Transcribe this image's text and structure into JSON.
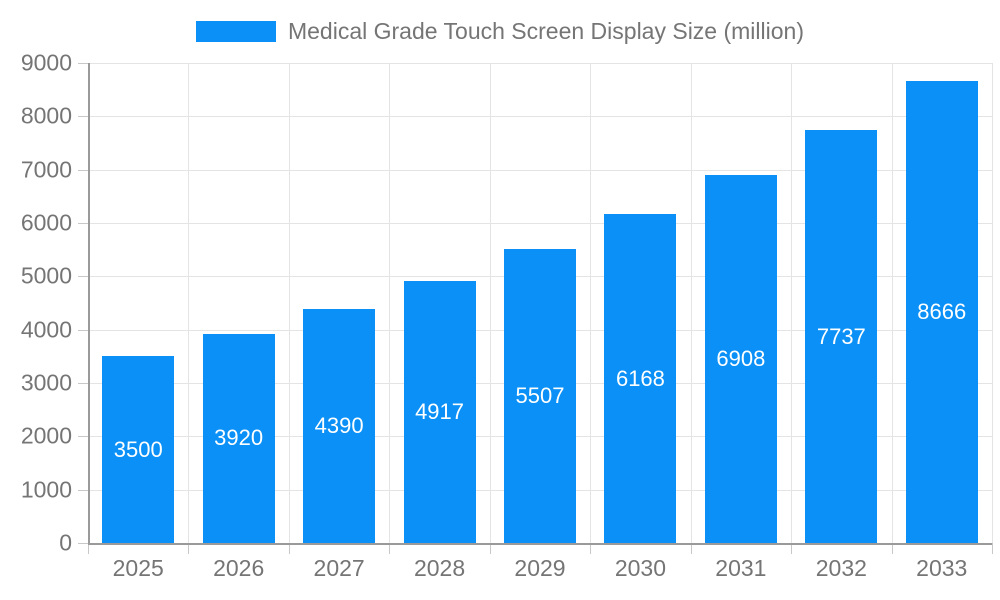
{
  "chart_data": {
    "type": "bar",
    "title": "Medical Grade Touch Screen Display Size (million)",
    "categories": [
      "2025",
      "2026",
      "2027",
      "2028",
      "2029",
      "2030",
      "2031",
      "2032",
      "2033"
    ],
    "values": [
      3500,
      3920,
      4390,
      4917,
      5507,
      6168,
      6908,
      7737,
      8666
    ],
    "xlabel": "",
    "ylabel": "",
    "ylim": [
      0,
      9000
    ],
    "y_ticks": [
      0,
      1000,
      2000,
      3000,
      4000,
      5000,
      6000,
      7000,
      8000,
      9000
    ],
    "grid": true,
    "legend_position": "top",
    "bar_labels_visible": true
  },
  "legend": {
    "label": "Medical Grade Touch Screen Display Size (million)"
  },
  "colors": {
    "bar": "#0a90f6",
    "bar_label": "#ffffff",
    "axis_text": "#757575",
    "axis_line": "#9a9a9a",
    "gridline": "#e4e4e4",
    "tick_mark": "#c8c8c8",
    "background": "#ffffff"
  }
}
